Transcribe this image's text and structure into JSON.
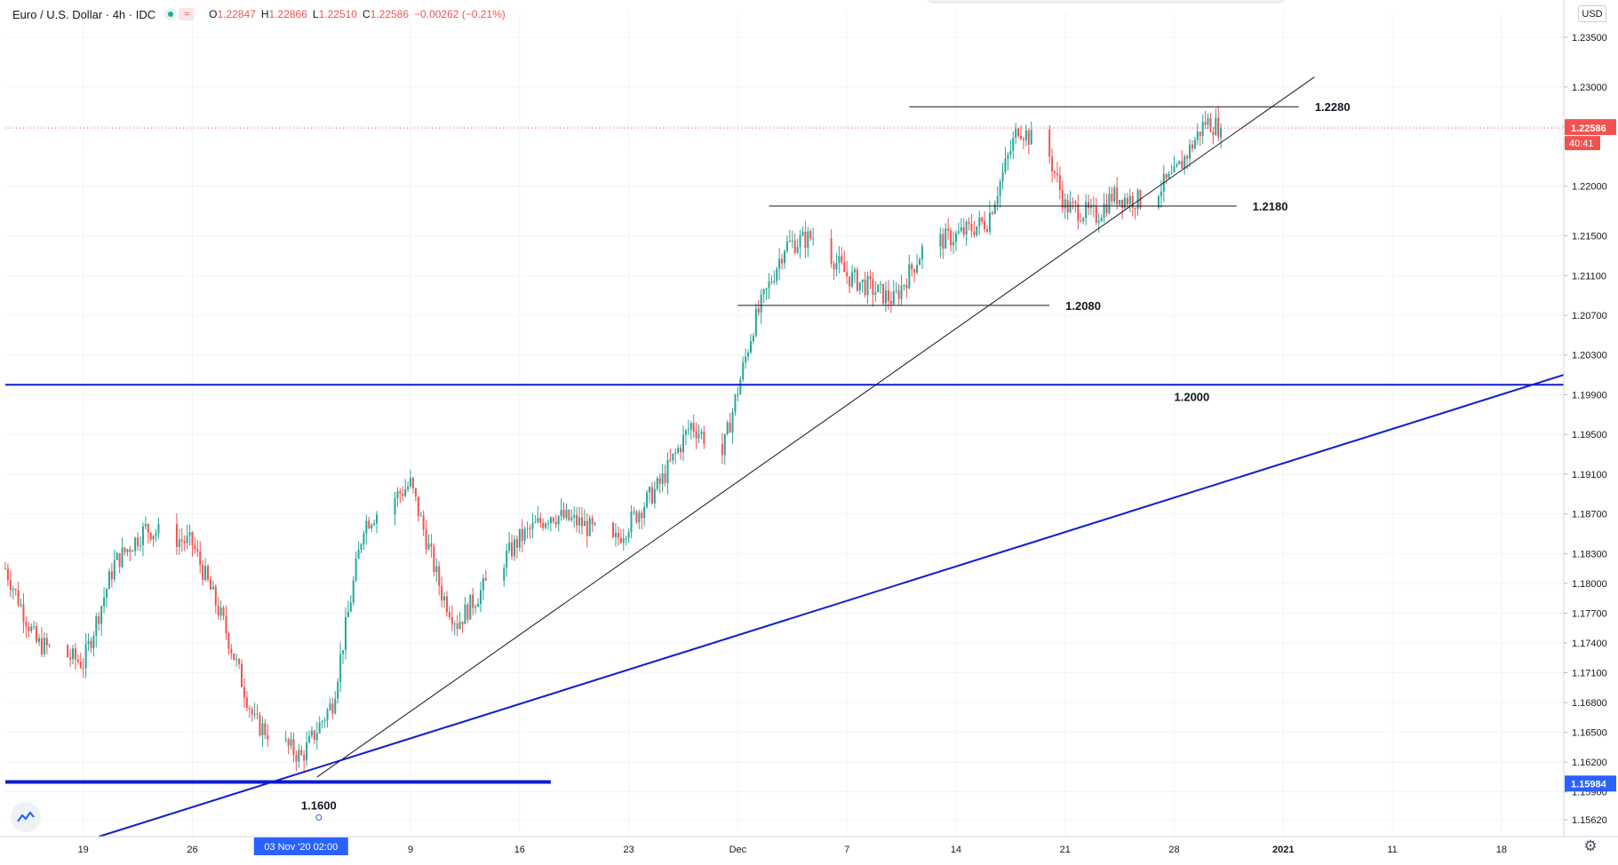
{
  "header": {
    "symbol": "Euro / U.S. Dollar · 4h · IDC",
    "open_label": "O",
    "open": "1.22847",
    "high_label": "H",
    "high": "1.22866",
    "low_label": "L",
    "low": "1.22510",
    "close_label": "C",
    "close": "1.22586",
    "change": "−0.00262 (−0.21%)"
  },
  "currency": "USD",
  "price_badge": {
    "value": "1.22586",
    "countdown": "40:41"
  },
  "cursor_price_badge": "1.15984",
  "time_badge": "03 Nov '20   02:00",
  "colors": {
    "up": "#26a69a",
    "down": "#ef5350",
    "accent_blue": "#2962ff",
    "line_blue": "#0d1cd1"
  },
  "chart_data": {
    "type": "candlestick",
    "instrument": "Euro / U.S. Dollar",
    "timeframe": "4h",
    "ylim": [
      1.1545,
      1.2375
    ],
    "y_ticks": [
      "1.23500",
      "1.23000",
      "1.22600",
      "1.22000",
      "1.21500",
      "1.21100",
      "1.20700",
      "1.20300",
      "1.19900",
      "1.19500",
      "1.19100",
      "1.18700",
      "1.18300",
      "1.18000",
      "1.17700",
      "1.17400",
      "1.17100",
      "1.16800",
      "1.16500",
      "1.16200",
      "1.15900",
      "1.15620"
    ],
    "x_range": [
      "2020-10-14",
      "2021-01-22"
    ],
    "x_ticks": [
      {
        "label": "19",
        "date": "2020-10-19"
      },
      {
        "label": "26",
        "date": "2020-10-26"
      },
      {
        "label": "9",
        "date": "2020-11-09"
      },
      {
        "label": "16",
        "date": "2020-11-16"
      },
      {
        "label": "23",
        "date": "2020-11-23"
      },
      {
        "label": "Dec",
        "date": "2020-11-30"
      },
      {
        "label": "7",
        "date": "2020-12-07"
      },
      {
        "label": "14",
        "date": "2020-12-14"
      },
      {
        "label": "21",
        "date": "2020-12-21"
      },
      {
        "label": "28",
        "date": "2020-12-28"
      },
      {
        "label": "2021",
        "date": "2021-01-04"
      },
      {
        "label": "11",
        "date": "2021-01-11"
      },
      {
        "label": "18",
        "date": "2021-01-18"
      }
    ],
    "swing_path": [
      {
        "date": "2020-10-14",
        "price": 1.1815
      },
      {
        "date": "2020-10-16",
        "price": 1.174
      },
      {
        "date": "2020-10-19",
        "price": 1.172
      },
      {
        "date": "2020-10-21",
        "price": 1.182
      },
      {
        "date": "2020-10-23",
        "price": 1.1855
      },
      {
        "date": "2020-10-26",
        "price": 1.184
      },
      {
        "date": "2020-10-28",
        "price": 1.176
      },
      {
        "date": "2020-10-30",
        "price": 1.166
      },
      {
        "date": "2020-11-02",
        "price": 1.1625
      },
      {
        "date": "2020-11-04",
        "price": 1.168
      },
      {
        "date": "2020-11-06",
        "price": 1.186
      },
      {
        "date": "2020-11-09",
        "price": 1.19
      },
      {
        "date": "2020-11-11",
        "price": 1.179
      },
      {
        "date": "2020-11-12",
        "price": 1.176
      },
      {
        "date": "2020-11-16",
        "price": 1.1845
      },
      {
        "date": "2020-11-18",
        "price": 1.187
      },
      {
        "date": "2020-11-20",
        "price": 1.186
      },
      {
        "date": "2020-11-22",
        "price": 1.184
      },
      {
        "date": "2020-11-25",
        "price": 1.19
      },
      {
        "date": "2020-11-27",
        "price": 1.196
      },
      {
        "date": "2020-11-29",
        "price": 1.193
      },
      {
        "date": "2020-12-01",
        "price": 1.206
      },
      {
        "date": "2020-12-03",
        "price": 1.214
      },
      {
        "date": "2020-12-05",
        "price": 1.215
      },
      {
        "date": "2020-12-07",
        "price": 1.211
      },
      {
        "date": "2020-12-10",
        "price": 1.2085
      },
      {
        "date": "2020-12-12",
        "price": 1.214
      },
      {
        "date": "2020-12-14",
        "price": 1.215
      },
      {
        "date": "2020-12-16",
        "price": 1.2165
      },
      {
        "date": "2020-12-18",
        "price": 1.226
      },
      {
        "date": "2020-12-20",
        "price": 1.223
      },
      {
        "date": "2020-12-21",
        "price": 1.218
      },
      {
        "date": "2020-12-23",
        "price": 1.217
      },
      {
        "date": "2020-12-24",
        "price": 1.219
      },
      {
        "date": "2020-12-26",
        "price": 1.2185
      },
      {
        "date": "2020-12-28",
        "price": 1.221
      },
      {
        "date": "2020-12-30",
        "price": 1.2265
      },
      {
        "date": "2020-12-31",
        "price": 1.2259
      }
    ],
    "annotations": [
      {
        "type": "hline",
        "price": 1.228,
        "label": "1.2280",
        "from": "2020-12-11",
        "to": "2021-01-05"
      },
      {
        "type": "hline",
        "price": 1.218,
        "label": "1.2180",
        "from": "2020-12-02",
        "to": "2021-01-01"
      },
      {
        "type": "hline",
        "price": 1.208,
        "label": "1.2080",
        "from": "2020-11-30",
        "to": "2020-12-20"
      },
      {
        "type": "hline",
        "price": 1.2,
        "label": "1.2000",
        "from": "2020-10-14",
        "to": "2021-01-22",
        "color": "blue"
      },
      {
        "type": "hline",
        "price": 1.16,
        "label": "1.1600",
        "from": "2020-10-14",
        "to": "2020-11-18",
        "color": "blue",
        "bold": true
      },
      {
        "type": "trendline",
        "from": {
          "date": "2020-11-03",
          "price": 1.1605
        },
        "to": {
          "date": "2021-01-06",
          "price": 1.231
        },
        "color": "black"
      },
      {
        "type": "trendline",
        "from": {
          "date": "2020-10-20",
          "price": 1.1545
        },
        "to": {
          "date": "2021-01-22",
          "price": 1.201
        },
        "color": "blue"
      }
    ],
    "last_price": 1.22586
  }
}
